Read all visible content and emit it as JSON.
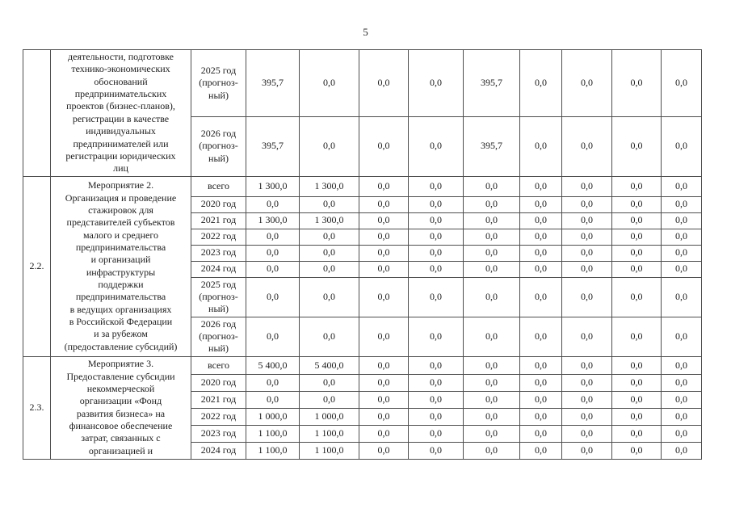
{
  "page": {
    "number": "5"
  },
  "table": {
    "value_columns": 9,
    "sections": [
      {
        "num": "",
        "description": "деятельности, подготовке\nтехнико-экономических\nобоснований\nпредпринимательских\nпроектов (бизнес-планов),\nрегистрации в качестве\nиндивидуальных\nпредпринимателей или\nрегистрации юридических\nлиц",
        "rows": [
          {
            "period": "2025 год\n(прогноз-\nный)",
            "values": [
              "395,7",
              "0,0",
              "0,0",
              "0,0",
              "395,7",
              "0,0",
              "0,0",
              "0,0",
              "0,0"
            ]
          },
          {
            "period": "2026 год\n(прогноз-\nный)",
            "values": [
              "395,7",
              "0,0",
              "0,0",
              "0,0",
              "395,7",
              "0,0",
              "0,0",
              "0,0",
              "0,0"
            ]
          }
        ]
      },
      {
        "num": "2.2.",
        "description": "Мероприятие 2.\nОрганизация и проведение\nстажировок для\nпредставителей субъектов\nмалого и среднего\nпредпринимательства\nи организаций\nинфраструктуры\nподдержки\nпредпринимательства\nв ведущих организациях\nв Российской Федерации\nи за рубежом\n(предоставление субсидий)",
        "rows": [
          {
            "period": "всего",
            "values": [
              "1 300,0",
              "1 300,0",
              "0,0",
              "0,0",
              "0,0",
              "0,0",
              "0,0",
              "0,0",
              "0,0"
            ]
          },
          {
            "period": "2020 год",
            "values": [
              "0,0",
              "0,0",
              "0,0",
              "0,0",
              "0,0",
              "0,0",
              "0,0",
              "0,0",
              "0,0"
            ]
          },
          {
            "period": "2021 год",
            "values": [
              "1 300,0",
              "1 300,0",
              "0,0",
              "0,0",
              "0,0",
              "0,0",
              "0,0",
              "0,0",
              "0,0"
            ]
          },
          {
            "period": "2022 год",
            "values": [
              "0,0",
              "0,0",
              "0,0",
              "0,0",
              "0,0",
              "0,0",
              "0,0",
              "0,0",
              "0,0"
            ]
          },
          {
            "period": "2023 год",
            "values": [
              "0,0",
              "0,0",
              "0,0",
              "0,0",
              "0,0",
              "0,0",
              "0,0",
              "0,0",
              "0,0"
            ]
          },
          {
            "period": "2024 год",
            "values": [
              "0,0",
              "0,0",
              "0,0",
              "0,0",
              "0,0",
              "0,0",
              "0,0",
              "0,0",
              "0,0"
            ]
          },
          {
            "period": "2025 год\n(прогноз-\nный)",
            "values": [
              "0,0",
              "0,0",
              "0,0",
              "0,0",
              "0,0",
              "0,0",
              "0,0",
              "0,0",
              "0,0"
            ]
          },
          {
            "period": "2026 год\n(прогноз-\nный)",
            "values": [
              "0,0",
              "0,0",
              "0,0",
              "0,0",
              "0,0",
              "0,0",
              "0,0",
              "0,0",
              "0,0"
            ]
          }
        ]
      },
      {
        "num": "2.3.",
        "description": "Мероприятие 3.\nПредоставление субсидии\nнекоммерческой\nорганизации «Фонд\nразвития бизнеса» на\nфинансовое обеспечение\nзатрат, связанных с\nорганизацией и",
        "rows": [
          {
            "period": "всего",
            "values": [
              "5 400,0",
              "5 400,0",
              "0,0",
              "0,0",
              "0,0",
              "0,0",
              "0,0",
              "0,0",
              "0,0"
            ]
          },
          {
            "period": "2020 год",
            "values": [
              "0,0",
              "0,0",
              "0,0",
              "0,0",
              "0,0",
              "0,0",
              "0,0",
              "0,0",
              "0,0"
            ]
          },
          {
            "period": "2021 год",
            "values": [
              "0,0",
              "0,0",
              "0,0",
              "0,0",
              "0,0",
              "0,0",
              "0,0",
              "0,0",
              "0,0"
            ]
          },
          {
            "period": "2022 год",
            "values": [
              "1 000,0",
              "1 000,0",
              "0,0",
              "0,0",
              "0,0",
              "0,0",
              "0,0",
              "0,0",
              "0,0"
            ]
          },
          {
            "period": "2023 год",
            "values": [
              "1 100,0",
              "1 100,0",
              "0,0",
              "0,0",
              "0,0",
              "0,0",
              "0,0",
              "0,0",
              "0,0"
            ]
          },
          {
            "period": "2024 год",
            "values": [
              "1 100,0",
              "1 100,0",
              "0,0",
              "0,0",
              "0,0",
              "0,0",
              "0,0",
              "0,0",
              "0,0"
            ]
          }
        ]
      }
    ]
  }
}
